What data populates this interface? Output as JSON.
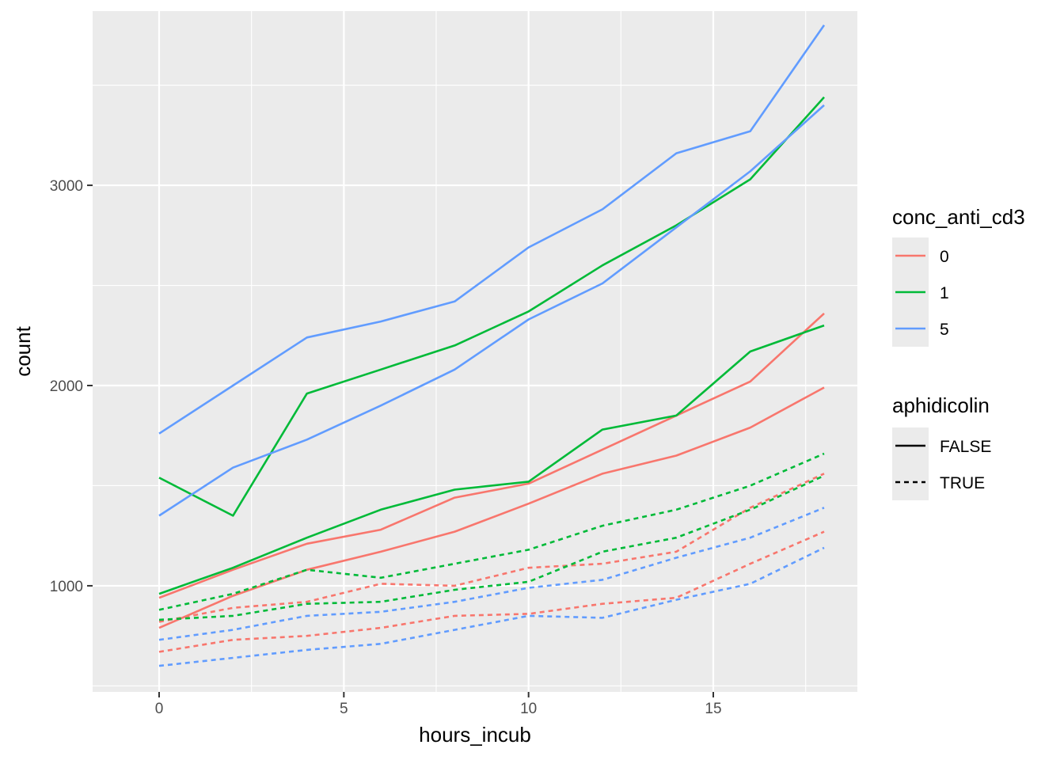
{
  "chart_data": {
    "type": "line",
    "xlabel": "hours_incub",
    "ylabel": "count",
    "xlim": [
      -1.8,
      18.9
    ],
    "ylim": [
      470,
      3870
    ],
    "x_ticks": [
      0,
      5,
      10,
      15
    ],
    "y_ticks": [
      1000,
      2000,
      3000
    ],
    "grid": true,
    "legend_position": "right",
    "legends": {
      "color": {
        "title": "conc_anti_cd3",
        "entries": [
          {
            "label": "0",
            "color": "#F8766D"
          },
          {
            "label": "1",
            "color": "#00BA38"
          },
          {
            "label": "5",
            "color": "#619CFF"
          }
        ]
      },
      "linetype": {
        "title": "aphidicolin",
        "entries": [
          {
            "label": "FALSE",
            "dash": "solid"
          },
          {
            "label": "TRUE",
            "dash": "dashed"
          }
        ]
      }
    },
    "x": [
      0,
      2,
      4,
      6,
      8,
      10,
      12,
      14,
      16,
      18
    ],
    "series": [
      {
        "conc": "0",
        "aphidicolin": "FALSE",
        "color": "#F8766D",
        "dash": false,
        "values": [
          940,
          1080,
          1210,
          1280,
          1440,
          1510,
          1680,
          1850,
          2020,
          2360
        ]
      },
      {
        "conc": "0",
        "aphidicolin": "FALSE",
        "color": "#F8766D",
        "dash": false,
        "values": [
          790,
          950,
          1080,
          1170,
          1270,
          1410,
          1560,
          1650,
          1790,
          1990
        ]
      },
      {
        "conc": "1",
        "aphidicolin": "FALSE",
        "color": "#00BA38",
        "dash": false,
        "values": [
          1540,
          1350,
          1960,
          2080,
          2200,
          2370,
          2600,
          2800,
          3030,
          3440
        ]
      },
      {
        "conc": "1",
        "aphidicolin": "FALSE",
        "color": "#00BA38",
        "dash": false,
        "values": [
          960,
          1090,
          1240,
          1380,
          1480,
          1520,
          1780,
          1850,
          2170,
          2300
        ]
      },
      {
        "conc": "5",
        "aphidicolin": "FALSE",
        "color": "#619CFF",
        "dash": false,
        "values": [
          1760,
          2000,
          2240,
          2320,
          2420,
          2690,
          2880,
          3160,
          3270,
          3800
        ]
      },
      {
        "conc": "5",
        "aphidicolin": "FALSE",
        "color": "#619CFF",
        "dash": false,
        "values": [
          1350,
          1590,
          1730,
          1900,
          2080,
          2330,
          2510,
          2790,
          3070,
          3400
        ]
      },
      {
        "conc": "0",
        "aphidicolin": "TRUE",
        "color": "#F8766D",
        "dash": true,
        "values": [
          820,
          890,
          920,
          1010,
          1000,
          1090,
          1110,
          1170,
          1390,
          1560
        ]
      },
      {
        "conc": "0",
        "aphidicolin": "TRUE",
        "color": "#F8766D",
        "dash": true,
        "values": [
          670,
          730,
          750,
          790,
          850,
          860,
          910,
          940,
          1110,
          1270
        ]
      },
      {
        "conc": "1",
        "aphidicolin": "TRUE",
        "color": "#00BA38",
        "dash": true,
        "values": [
          880,
          960,
          1080,
          1040,
          1110,
          1180,
          1300,
          1380,
          1500,
          1660
        ]
      },
      {
        "conc": "1",
        "aphidicolin": "TRUE",
        "color": "#00BA38",
        "dash": true,
        "values": [
          830,
          850,
          910,
          920,
          980,
          1020,
          1170,
          1240,
          1380,
          1550
        ]
      },
      {
        "conc": "5",
        "aphidicolin": "TRUE",
        "color": "#619CFF",
        "dash": true,
        "values": [
          730,
          780,
          850,
          870,
          920,
          990,
          1030,
          1140,
          1240,
          1390
        ]
      },
      {
        "conc": "5",
        "aphidicolin": "TRUE",
        "color": "#619CFF",
        "dash": true,
        "values": [
          600,
          640,
          680,
          710,
          780,
          850,
          840,
          930,
          1010,
          1190
        ]
      }
    ]
  }
}
